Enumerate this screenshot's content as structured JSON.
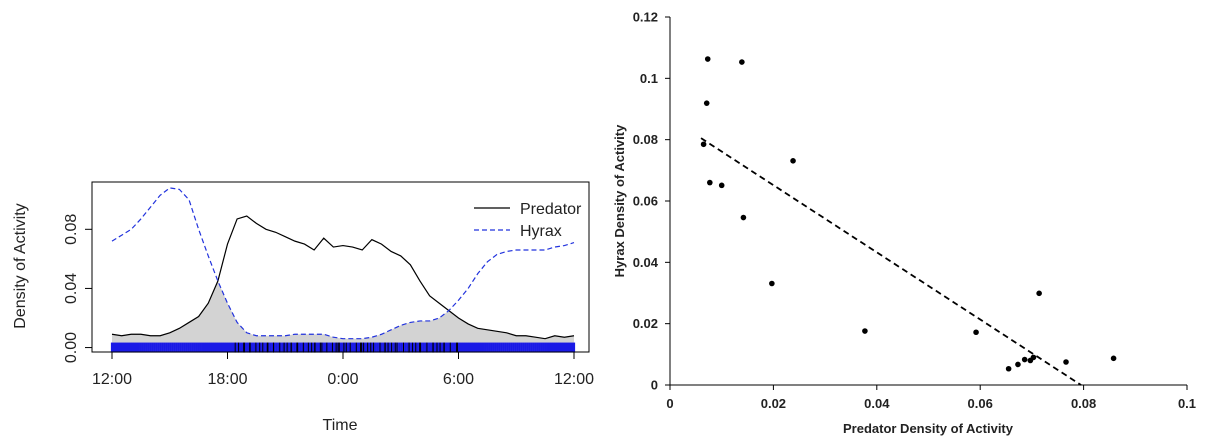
{
  "chart_data": [
    {
      "type": "line",
      "xlabel": "Time",
      "ylabel": "Density of Activity",
      "x_tick_labels": [
        "12:00",
        "18:00",
        "0:00",
        "6:00",
        "12:00"
      ],
      "x_tick_values": [
        0,
        6,
        12,
        18,
        24
      ],
      "y_tick_labels": [
        "0.00",
        "0.04",
        "0.08"
      ],
      "y_tick_values": [
        0,
        0.04,
        0.08
      ],
      "xlim": [
        0,
        24
      ],
      "ylim": [
        -0.003,
        0.112
      ],
      "grid": false,
      "legend_position": "top-right",
      "overlap_shaded": true,
      "series": [
        {
          "name": "Predator",
          "color": "#000000",
          "line_style": "solid",
          "x": [
            0,
            0.5,
            1,
            1.5,
            2,
            2.5,
            3,
            3.5,
            4,
            4.5,
            5,
            5.5,
            6,
            6.5,
            7,
            7.5,
            8,
            8.5,
            9,
            9.5,
            10,
            10.5,
            11,
            11.5,
            12,
            12.5,
            13,
            13.5,
            14,
            14.5,
            15,
            15.5,
            16,
            16.5,
            17,
            17.5,
            18,
            18.5,
            19,
            19.5,
            20,
            20.5,
            21,
            21.5,
            22,
            22.5,
            23,
            23.5,
            24
          ],
          "values": [
            0.009,
            0.008,
            0.009,
            0.009,
            0.008,
            0.008,
            0.01,
            0.013,
            0.017,
            0.021,
            0.03,
            0.045,
            0.07,
            0.087,
            0.089,
            0.084,
            0.08,
            0.078,
            0.075,
            0.072,
            0.07,
            0.066,
            0.074,
            0.068,
            0.069,
            0.068,
            0.066,
            0.073,
            0.07,
            0.065,
            0.062,
            0.056,
            0.045,
            0.035,
            0.03,
            0.025,
            0.02,
            0.016,
            0.013,
            0.012,
            0.011,
            0.01,
            0.008,
            0.008,
            0.007,
            0.006,
            0.008,
            0.007,
            0.008
          ]
        },
        {
          "name": "Hyrax",
          "color": "#2233dd",
          "line_style": "dashed",
          "x": [
            0,
            0.5,
            1,
            1.5,
            2,
            2.5,
            3,
            3.5,
            4,
            4.5,
            5,
            5.5,
            6,
            6.5,
            7,
            7.5,
            8,
            8.5,
            9,
            9.5,
            10,
            10.5,
            11,
            11.5,
            12,
            12.5,
            13,
            13.5,
            14,
            14.5,
            15,
            15.5,
            16,
            16.5,
            17,
            17.5,
            18,
            18.5,
            19,
            19.5,
            20,
            20.5,
            21,
            21.5,
            22,
            22.5,
            23,
            23.5,
            24
          ],
          "values": [
            0.072,
            0.076,
            0.08,
            0.087,
            0.095,
            0.103,
            0.108,
            0.107,
            0.1,
            0.08,
            0.062,
            0.045,
            0.03,
            0.017,
            0.01,
            0.008,
            0.008,
            0.008,
            0.008,
            0.009,
            0.009,
            0.009,
            0.009,
            0.007,
            0.006,
            0.006,
            0.006,
            0.007,
            0.009,
            0.012,
            0.015,
            0.017,
            0.018,
            0.018,
            0.02,
            0.025,
            0.032,
            0.04,
            0.05,
            0.058,
            0.063,
            0.065,
            0.066,
            0.066,
            0.066,
            0.066,
            0.068,
            0.069,
            0.071
          ]
        }
      ],
      "rug": {
        "colors": [
          "#1a1ae6",
          "#000000"
        ]
      }
    },
    {
      "type": "scatter",
      "xlabel": "Predator Density of Activity",
      "ylabel": "Hyrax Density of Activity",
      "x_tick_labels": [
        "0",
        "0.02",
        "0.04",
        "0.06",
        "0.08",
        "0.1"
      ],
      "x_tick_values": [
        0,
        0.02,
        0.04,
        0.06,
        0.08,
        0.1
      ],
      "y_tick_labels": [
        "0",
        "0.02",
        "0.04",
        "0.06",
        "0.08",
        "0.1",
        "0.12"
      ],
      "y_tick_values": [
        0,
        0.02,
        0.04,
        0.06,
        0.08,
        0.1,
        0.12
      ],
      "xlim": [
        0,
        0.1
      ],
      "ylim": [
        0,
        0.12
      ],
      "grid": false,
      "points": [
        {
          "x": 0.0073,
          "y": 0.1063
        },
        {
          "x": 0.0139,
          "y": 0.1053
        },
        {
          "x": 0.0071,
          "y": 0.0919
        },
        {
          "x": 0.0065,
          "y": 0.0785
        },
        {
          "x": 0.0238,
          "y": 0.0731
        },
        {
          "x": 0.0077,
          "y": 0.066
        },
        {
          "x": 0.01,
          "y": 0.0651
        },
        {
          "x": 0.0142,
          "y": 0.0546
        },
        {
          "x": 0.0197,
          "y": 0.0331
        },
        {
          "x": 0.0714,
          "y": 0.0299
        },
        {
          "x": 0.0377,
          "y": 0.0176
        },
        {
          "x": 0.0592,
          "y": 0.0172
        },
        {
          "x": 0.0858,
          "y": 0.0087
        },
        {
          "x": 0.0703,
          "y": 0.009
        },
        {
          "x": 0.0686,
          "y": 0.0083
        },
        {
          "x": 0.0697,
          "y": 0.008
        },
        {
          "x": 0.0766,
          "y": 0.0075
        },
        {
          "x": 0.0673,
          "y": 0.0067
        },
        {
          "x": 0.0655,
          "y": 0.0053
        }
      ],
      "trendline": {
        "style": "dashed",
        "x": [
          0.006,
          0.0795
        ],
        "y": [
          0.0805,
          0.0
        ]
      }
    }
  ]
}
